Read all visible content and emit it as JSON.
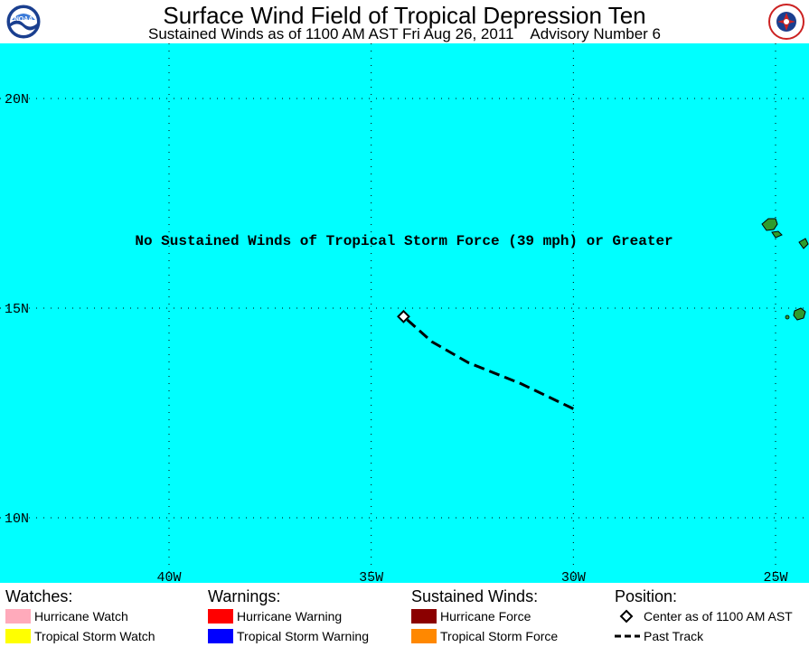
{
  "header": {
    "title": "Surface Wind Field of Tropical Depression Ten",
    "subtitle": "Sustained Winds as of 1100 AM AST Fri Aug 26, 2011    Advisory Number 6"
  },
  "logos": {
    "left": "NOAA",
    "right_ring": "NATIONAL WEATHER SERVICE"
  },
  "map": {
    "message": "No Sustained Winds of Tropical Storm Force (39 mph) or Greater",
    "lat_labels": [
      "20N",
      "15N",
      "10N"
    ],
    "lon_labels": [
      "40W",
      "35W",
      "30W",
      "25W"
    ],
    "ocean_color": "#00ffff",
    "land_color": "#2e9c2e",
    "current_center": {
      "lat": 14.8,
      "lon": -34.2
    },
    "past_track": [
      {
        "lat": 12.6,
        "lon": -30.0
      },
      {
        "lat": 13.2,
        "lon": -31.3
      },
      {
        "lat": 13.7,
        "lon": -32.6
      },
      {
        "lat": 14.2,
        "lon": -33.5
      },
      {
        "lat": 14.8,
        "lon": -34.2
      }
    ]
  },
  "legend": {
    "watches": {
      "heading": "Watches:",
      "items": [
        {
          "label": "Hurricane Watch",
          "color": "#ffaabb"
        },
        {
          "label": "Tropical Storm Watch",
          "color": "#ffff00"
        }
      ]
    },
    "warnings": {
      "heading": "Warnings:",
      "items": [
        {
          "label": "Hurricane Warning",
          "color": "#ff0000"
        },
        {
          "label": "Tropical Storm Warning",
          "color": "#0000ff"
        }
      ]
    },
    "winds": {
      "heading": "Sustained Winds:",
      "items": [
        {
          "label": "Hurricane Force",
          "color": "#8b0000"
        },
        {
          "label": "Tropical Storm Force",
          "color": "#ff8800"
        }
      ]
    },
    "position": {
      "heading": "Position:",
      "items": [
        {
          "label": "Center as of 1100 AM AST",
          "icon": "diamond-icon"
        },
        {
          "label": "Past Track",
          "icon": "dashed-line-icon"
        }
      ]
    }
  }
}
